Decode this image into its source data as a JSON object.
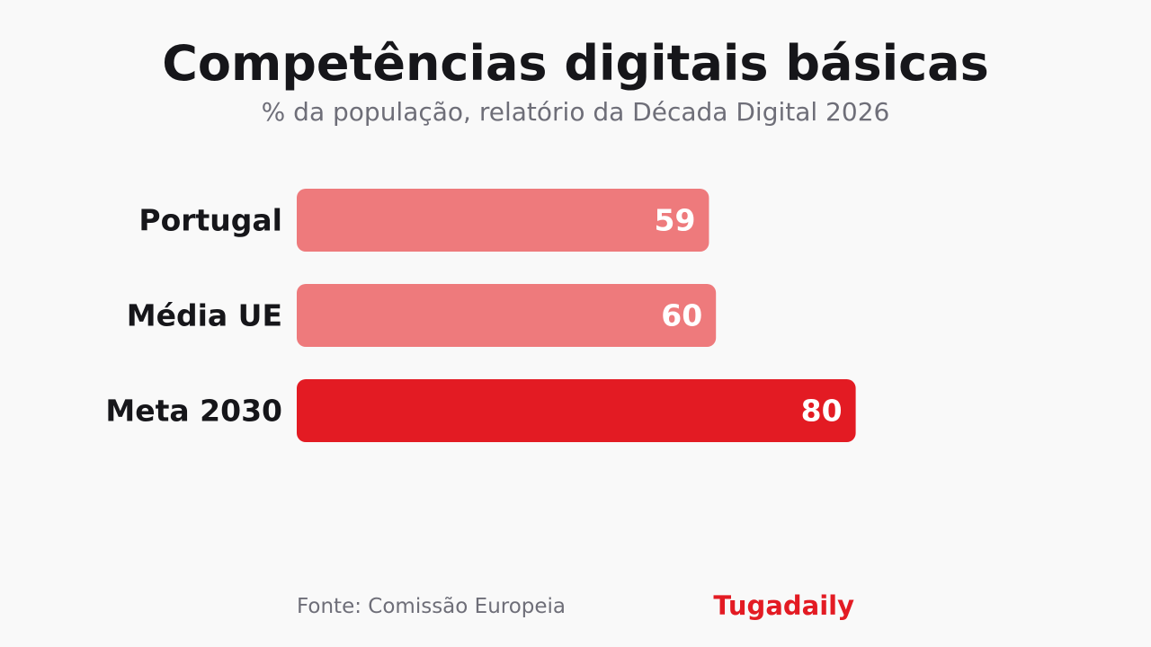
{
  "title": "Competências digitais básicas",
  "subtitle": "% da população, relatório da Década Digital 2026",
  "source": "Fonte: Comissão Europeia",
  "brand": "Tugadaily",
  "colors": {
    "background": "#f9f9f9",
    "bar_light": "#ee7a7c",
    "bar_highlight": "#e31b23",
    "brand": "#e31b23",
    "label": "#16161a",
    "value_label": "#ffffff"
  },
  "chart_data": {
    "type": "bar",
    "orientation": "horizontal",
    "categories": [
      "Portugal",
      "Média UE",
      "Meta 2030"
    ],
    "values": [
      59,
      60,
      80
    ],
    "highlight": [
      false,
      false,
      true
    ],
    "xlim": [
      0,
      100
    ],
    "grid": false,
    "legend": "none"
  }
}
